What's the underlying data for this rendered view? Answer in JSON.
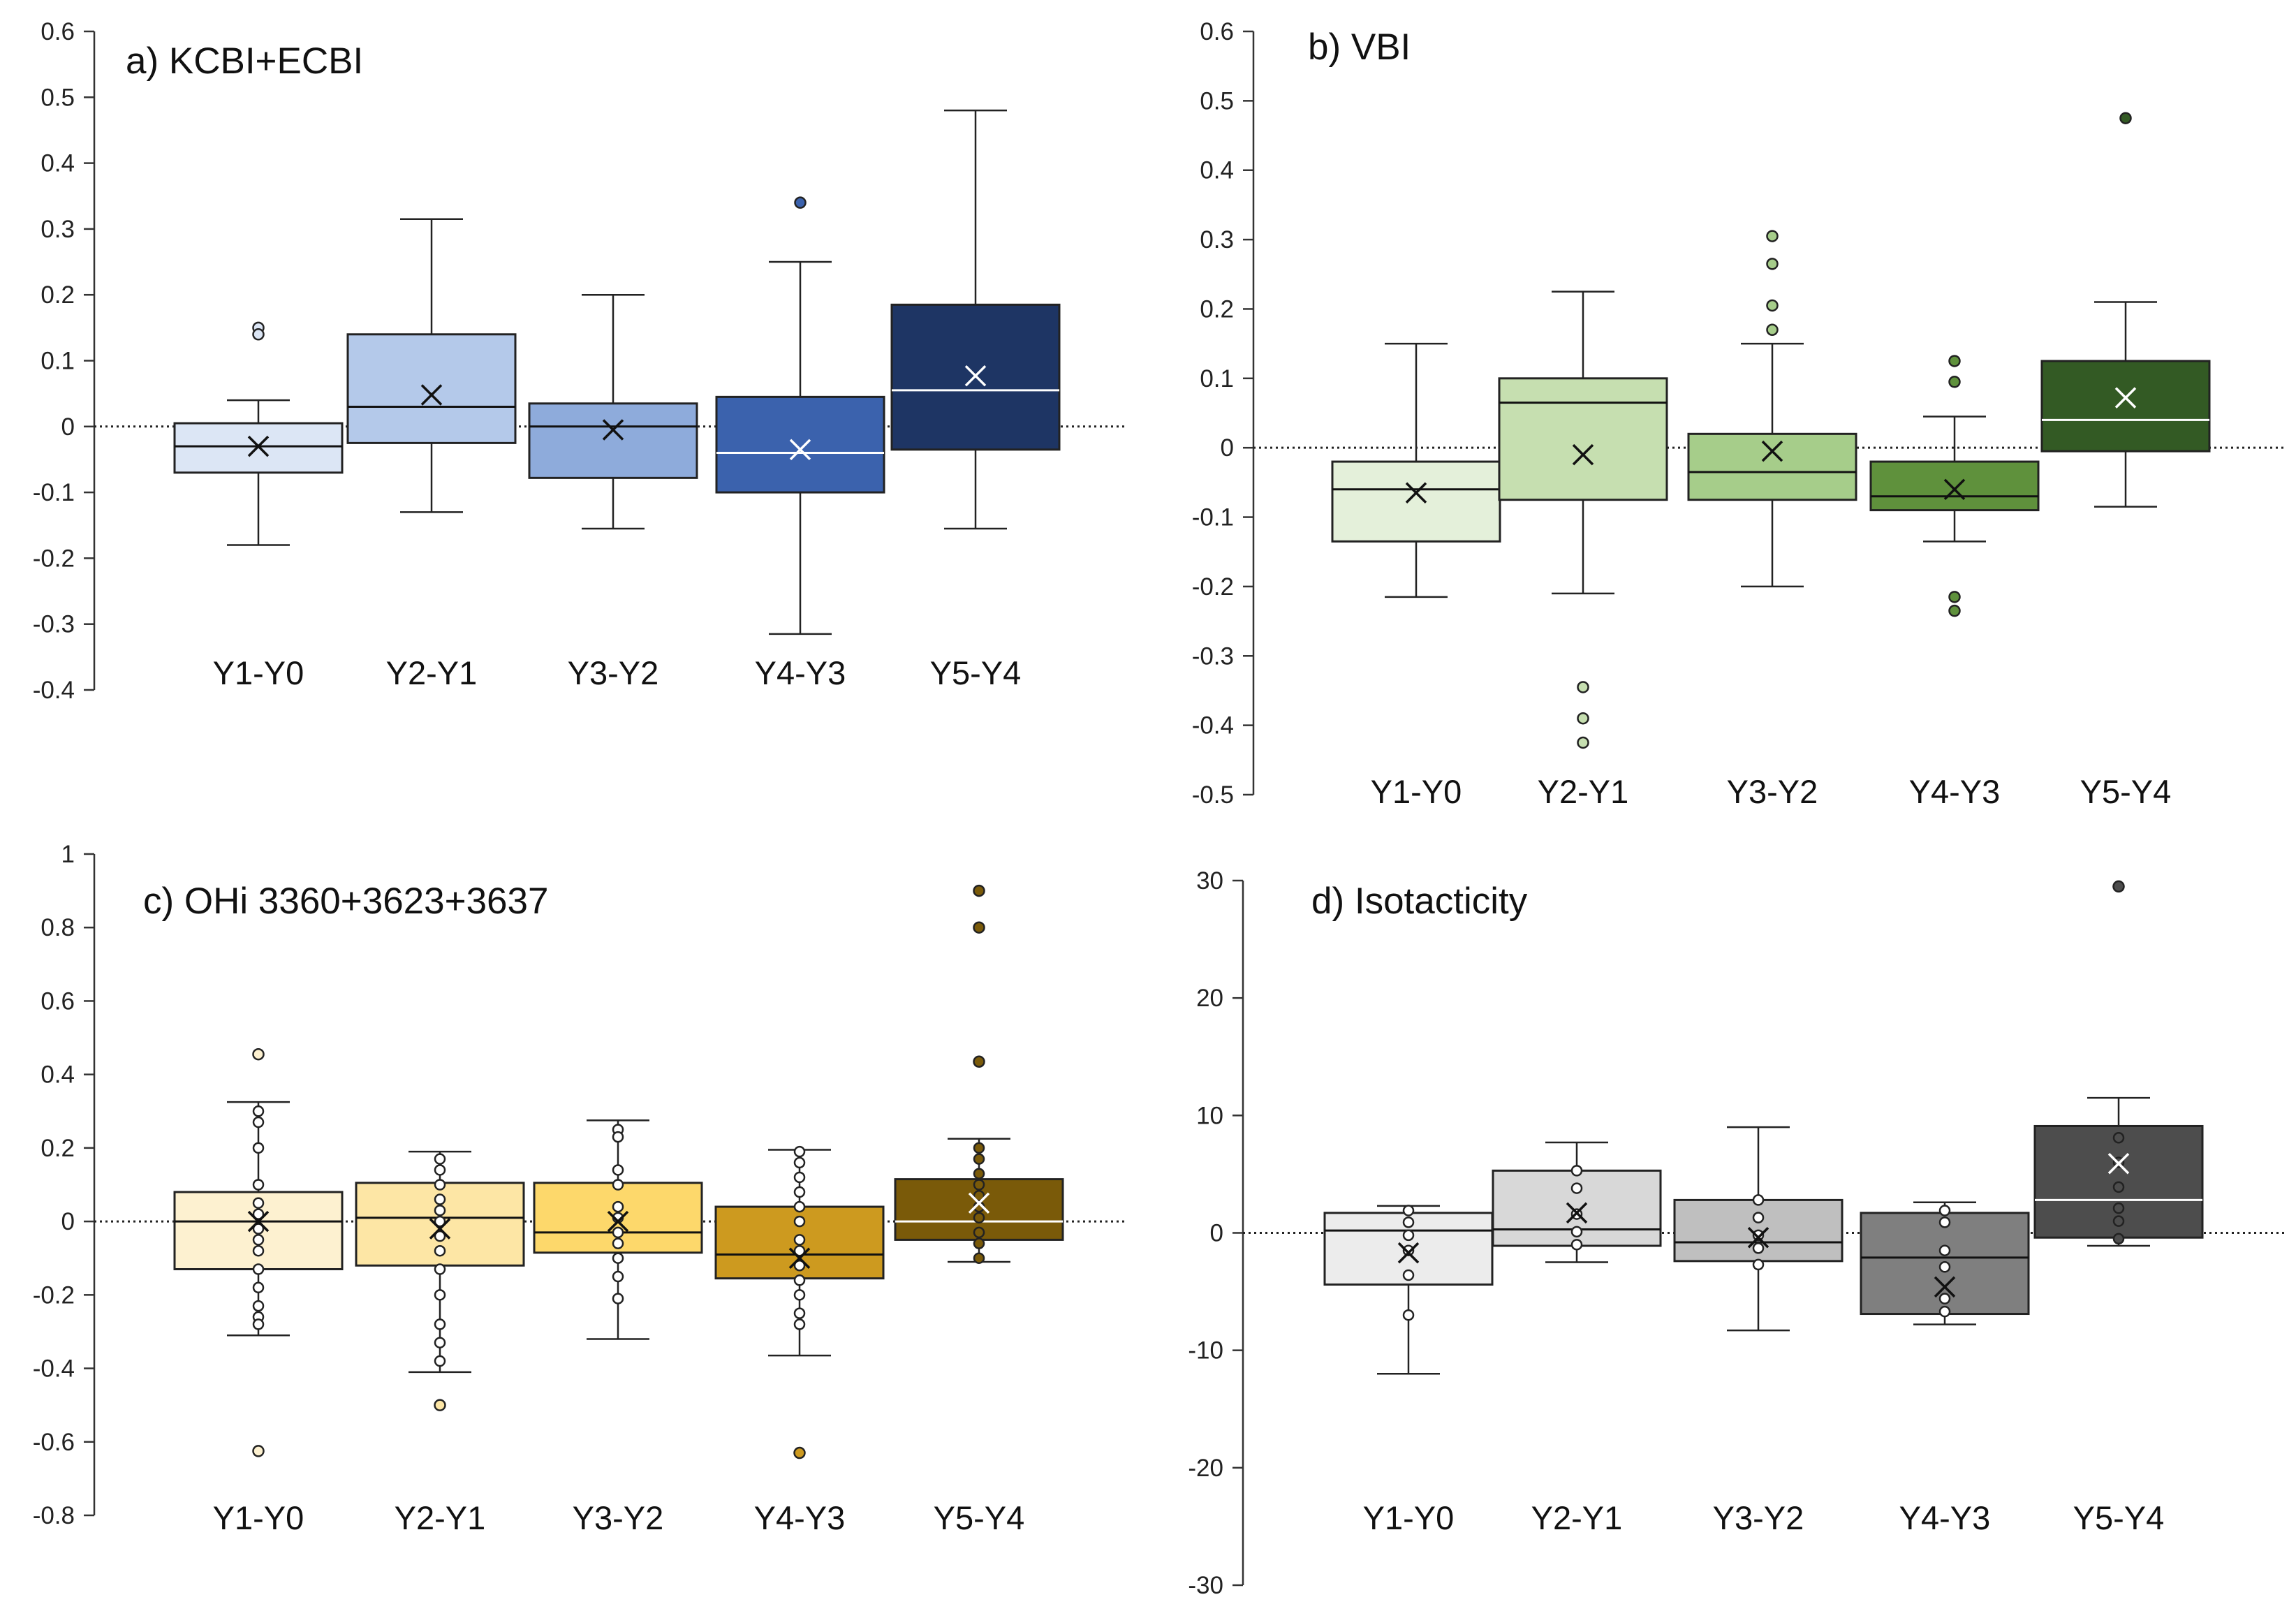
{
  "chart_data": [
    {
      "type": "boxplot",
      "title": "a) KCBI+ECBI",
      "categories": [
        "Y1-Y0",
        "Y2-Y1",
        "Y3-Y2",
        "Y4-Y3",
        "Y5-Y4"
      ],
      "ylim": [
        -0.4,
        0.6
      ],
      "yticks": [
        -0.4,
        -0.3,
        -0.2,
        -0.1,
        0,
        0.1,
        0.2,
        0.3,
        0.4,
        0.5,
        0.6
      ],
      "ytick_labels": [
        "-0.4",
        "-0.3",
        "-0.2",
        "-0.1",
        "0",
        "0.1",
        "0.2",
        "0.3",
        "0.4",
        "0.5",
        "0.6"
      ],
      "reference_line": 0,
      "boxes": [
        {
          "min": -0.18,
          "q1": -0.07,
          "median": -0.03,
          "q3": 0.005,
          "max": 0.04,
          "mean": -0.03,
          "outliers": [
            0.15,
            0.14
          ],
          "points": [],
          "color": "#dce6f5"
        },
        {
          "min": -0.13,
          "q1": -0.025,
          "median": 0.03,
          "q3": 0.14,
          "max": 0.315,
          "mean": 0.048,
          "outliers": [],
          "points": [],
          "color": "#b4c9ea"
        },
        {
          "min": -0.155,
          "q1": -0.078,
          "median": 0.0,
          "q3": 0.035,
          "max": 0.2,
          "mean": -0.005,
          "outliers": [],
          "points": [],
          "color": "#8eabdb"
        },
        {
          "min": -0.315,
          "q1": -0.1,
          "median": -0.04,
          "q3": 0.045,
          "max": 0.25,
          "mean": -0.035,
          "outliers": [
            0.34
          ],
          "points": [],
          "color": "#3b62ad"
        },
        {
          "min": -0.155,
          "q1": -0.035,
          "median": 0.055,
          "q3": 0.185,
          "max": 0.48,
          "mean": 0.077,
          "outliers": [],
          "points": [],
          "color": "#1e3564"
        }
      ]
    },
    {
      "type": "boxplot",
      "title": "b) VBI",
      "categories": [
        "Y1-Y0",
        "Y2-Y1",
        "Y3-Y2",
        "Y4-Y3",
        "Y5-Y4"
      ],
      "ylim": [
        -0.5,
        0.6
      ],
      "yticks": [
        -0.5,
        -0.4,
        -0.3,
        -0.2,
        -0.1,
        0,
        0.1,
        0.2,
        0.3,
        0.4,
        0.5,
        0.6
      ],
      "ytick_labels": [
        "-0.5",
        "-0.4",
        "-0.3",
        "-0.2",
        "-0.1",
        "0",
        "0.1",
        "0.2",
        "0.3",
        "0.4",
        "0.5",
        "0.6"
      ],
      "reference_line": 0,
      "boxes": [
        {
          "min": -0.215,
          "q1": -0.135,
          "median": -0.06,
          "q3": -0.02,
          "max": 0.15,
          "mean": -0.065,
          "outliers": [],
          "points": [],
          "color": "#e4f0da"
        },
        {
          "min": -0.21,
          "q1": -0.075,
          "median": 0.065,
          "q3": 0.1,
          "max": 0.225,
          "mean": -0.01,
          "outliers": [
            -0.345,
            -0.39,
            -0.425
          ],
          "points": [],
          "color": "#c6dfb0"
        },
        {
          "min": -0.2,
          "q1": -0.075,
          "median": -0.035,
          "q3": 0.02,
          "max": 0.15,
          "mean": -0.005,
          "outliers": [
            0.305,
            0.265,
            0.205,
            0.17
          ],
          "points": [],
          "color": "#a6cd8a"
        },
        {
          "min": -0.135,
          "q1": -0.09,
          "median": -0.07,
          "q3": -0.02,
          "max": 0.045,
          "mean": -0.06,
          "outliers": [
            0.125,
            0.095,
            -0.215,
            -0.235
          ],
          "points": [],
          "color": "#5f913c"
        },
        {
          "min": -0.085,
          "q1": -0.005,
          "median": 0.04,
          "q3": 0.125,
          "max": 0.21,
          "mean": 0.072,
          "outliers": [
            0.475
          ],
          "points": [],
          "color": "#335a24"
        }
      ]
    },
    {
      "type": "boxplot",
      "title": "c) OHi 3360+3623+3637",
      "categories": [
        "Y1-Y0",
        "Y2-Y1",
        "Y3-Y2",
        "Y4-Y3",
        "Y5-Y4"
      ],
      "ylim": [
        -0.8,
        1.0
      ],
      "yticks": [
        -0.8,
        -0.6,
        -0.4,
        -0.2,
        0,
        0.2,
        0.4,
        0.6,
        0.8,
        1.0
      ],
      "ytick_labels": [
        "-0.8",
        "-0.6",
        "-0.4",
        "-0.2",
        "0",
        "0.2",
        "0.4",
        "0.6",
        "0.8",
        "1"
      ],
      "reference_line": 0,
      "boxes": [
        {
          "min": -0.31,
          "q1": -0.13,
          "median": 0.0,
          "q3": 0.08,
          "max": 0.325,
          "mean": 0.0,
          "outliers": [
            0.455,
            -0.625
          ],
          "points": [
            0.3,
            0.27,
            0.2,
            0.1,
            0.05,
            0.02,
            -0.02,
            -0.05,
            -0.08,
            -0.13,
            -0.18,
            -0.23,
            -0.26,
            -0.28
          ],
          "color": "#fdf1d0"
        },
        {
          "min": -0.41,
          "q1": -0.12,
          "median": 0.01,
          "q3": 0.105,
          "max": 0.19,
          "mean": -0.02,
          "outliers": [
            -0.5
          ],
          "points": [
            0.17,
            0.14,
            0.1,
            0.06,
            0.03,
            0.0,
            -0.04,
            -0.08,
            -0.13,
            -0.2,
            -0.28,
            -0.33,
            -0.38
          ],
          "color": "#fde6a5"
        },
        {
          "min": -0.32,
          "q1": -0.085,
          "median": -0.03,
          "q3": 0.105,
          "max": 0.275,
          "mean": 0.0,
          "outliers": [],
          "points": [
            0.25,
            0.23,
            0.14,
            0.1,
            0.04,
            0.01,
            -0.03,
            -0.06,
            -0.1,
            -0.15,
            -0.21
          ],
          "color": "#fdd86b"
        },
        {
          "min": -0.365,
          "q1": -0.155,
          "median": -0.09,
          "q3": 0.04,
          "max": 0.195,
          "mean": -0.1,
          "outliers": [
            -0.63
          ],
          "points": [
            0.19,
            0.16,
            0.12,
            0.08,
            0.04,
            0.0,
            -0.05,
            -0.08,
            -0.12,
            -0.16,
            -0.2,
            -0.25,
            -0.28
          ],
          "color": "#cd9a1f"
        },
        {
          "min": -0.11,
          "q1": -0.05,
          "median": 0.0,
          "q3": 0.115,
          "max": 0.225,
          "mean": 0.05,
          "outliers": [
            0.9,
            0.8,
            0.435
          ],
          "points": [
            0.2,
            0.17,
            0.13,
            0.1,
            0.07,
            0.04,
            0.01,
            -0.03,
            -0.06,
            -0.1
          ],
          "color": "#7a5a09"
        }
      ]
    },
    {
      "type": "boxplot",
      "title": "d) Isotacticity",
      "categories": [
        "Y1-Y0",
        "Y2-Y1",
        "Y3-Y2",
        "Y4-Y3",
        "Y5-Y4"
      ],
      "ylim": [
        -30,
        30
      ],
      "yticks": [
        -30,
        -20,
        -10,
        0,
        10,
        20,
        30
      ],
      "ytick_labels": [
        "-30",
        "-20",
        "-10",
        "0",
        "10",
        "20",
        "30"
      ],
      "reference_line": 0,
      "boxes": [
        {
          "min": -12,
          "q1": -4.4,
          "median": 0.2,
          "q3": 1.7,
          "max": 2.3,
          "mean": -1.7,
          "outliers": [],
          "points": [
            1.9,
            0.9,
            -0.2,
            -1.5,
            -3.6,
            -7.0
          ],
          "color": "#ececec"
        },
        {
          "min": -2.5,
          "q1": -1.1,
          "median": 0.3,
          "q3": 5.3,
          "max": 7.7,
          "mean": 1.7,
          "outliers": [],
          "points": [
            5.3,
            3.8,
            1.6,
            0.1,
            -1.0
          ],
          "color": "#d8d8d8"
        },
        {
          "min": -8.3,
          "q1": -2.4,
          "median": -0.8,
          "q3": 2.8,
          "max": 9.0,
          "mean": -0.4,
          "outliers": [],
          "points": [
            2.8,
            1.3,
            -0.2,
            -1.3,
            -2.7
          ],
          "color": "#bfbfbf"
        },
        {
          "min": -7.8,
          "q1": -6.9,
          "median": -2.1,
          "q3": 1.7,
          "max": 2.6,
          "mean": -4.6,
          "outliers": [],
          "points": [
            1.9,
            0.9,
            -1.5,
            -2.9,
            -5.6,
            -6.7
          ],
          "color": "#7f7f7f"
        },
        {
          "min": -1.1,
          "q1": -0.4,
          "median": 2.8,
          "q3": 9.1,
          "max": 11.5,
          "mean": 5.9,
          "outliers": [
            29.5
          ],
          "points": [
            8.1,
            6.0,
            3.9,
            2.1,
            1.0,
            -0.5
          ],
          "color": "#4d4d4d"
        }
      ]
    }
  ]
}
